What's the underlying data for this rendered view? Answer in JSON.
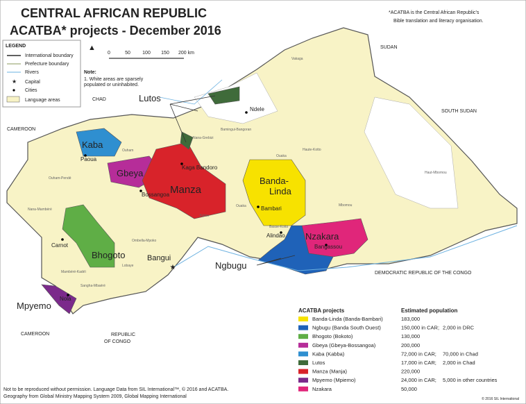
{
  "title": [
    "CENTRAL AFRICAN REPUBLIC",
    "ACATBA* projects - December 2016"
  ],
  "footnote": [
    "*ACATBA is the Central African Republic's",
    "Bible translation and literacy organisation."
  ],
  "legend": {
    "heading": "LEGEND",
    "items": [
      "International boundary",
      "Prefecture boundary",
      "Rivers",
      "Capital",
      "Cities",
      "Language areas"
    ]
  },
  "scale": [
    "0",
    "50",
    "100",
    "150",
    "200 km"
  ],
  "note": [
    "Note:",
    "1. White areas are sparsely",
    "populated or uninhabited."
  ],
  "countries": [
    "CHAD",
    "SUDAN",
    "SOUTH SUDAN",
    "CAMEROON",
    "CAMEROON",
    "DEMOCRATIC REPUBLIC OF THE CONGO",
    "REPUBLIC",
    "OF CONGO"
  ],
  "projects": [
    "Lutos",
    "Kaba",
    "Gbeya",
    "Manza",
    "Banda-",
    "Linda",
    "Nzakara",
    "Ngbugu",
    "Bhogoto",
    "Mpyemo"
  ],
  "cities": [
    "Ndele",
    "Paoua",
    "Kaga Bandoro",
    "Bossangoa",
    "Bambari",
    "Alindao",
    "Bangassou",
    "Carnot",
    "Bangui",
    "Nola"
  ],
  "prefectures": [
    "Vakaga",
    "Bamingui-Bangoran",
    "Haute-Kotto",
    "Haut-Mbomou",
    "Mbomou",
    "Ouham",
    "Ouham-Pendé",
    "Nana-Grebizi",
    "Nana-Mambéré",
    "Ombella-Mpoko",
    "Lobaye",
    "Mambéré-Kadéï",
    "Sangha-Mbaéré",
    "Kémo",
    "Ouaka",
    "Basse-Kotto",
    "Ouaka"
  ],
  "table": {
    "heading": "ACATBA projects",
    "pop_heading": "Estimated population",
    "rows": [
      {
        "name": "Banda-Linda (Banda-Bambari)",
        "color": "#f7e200",
        "population": [
          "183,000"
        ]
      },
      {
        "name": "Ngbugu (Banda South Ouest)",
        "color": "#1f62b8",
        "population": [
          "150,000 in CAR;",
          "2,000 in DRC"
        ]
      },
      {
        "name": "Bhogoto (Bokoto)",
        "color": "#5fae46",
        "population": [
          "130,000"
        ]
      },
      {
        "name": "Gbeya (Gbeya-Bossangoa)",
        "color": "#b62d99",
        "population": [
          "200,000"
        ]
      },
      {
        "name": "Kaba (Kabba)",
        "color": "#2f8fd0",
        "population": [
          "72,000 in CAR;",
          "70,000 in Chad"
        ]
      },
      {
        "name": "Lutos",
        "color": "#3f6b3a",
        "population": [
          "17,000 in CAR;",
          "2,000 in Chad"
        ]
      },
      {
        "name": "Manza (Manja)",
        "color": "#d8232a",
        "population": [
          "220,000"
        ]
      },
      {
        "name": "Mpyemo (Mpiemo)",
        "color": "#7b2a8b",
        "population": [
          "24,000 in CAR;",
          "5,000 in other countries"
        ]
      },
      {
        "name": "Nzakara",
        "color": "#e0267a",
        "population": [
          "50,000"
        ]
      }
    ]
  },
  "copyright": [
    "Not to be reproduced without permission. Language Data from SIL International™, © 2016 and ACATBA.",
    "Geography from Global Ministry Mapping System 2009, Global Mapping International"
  ],
  "credit": "© 2016 SIL International"
}
